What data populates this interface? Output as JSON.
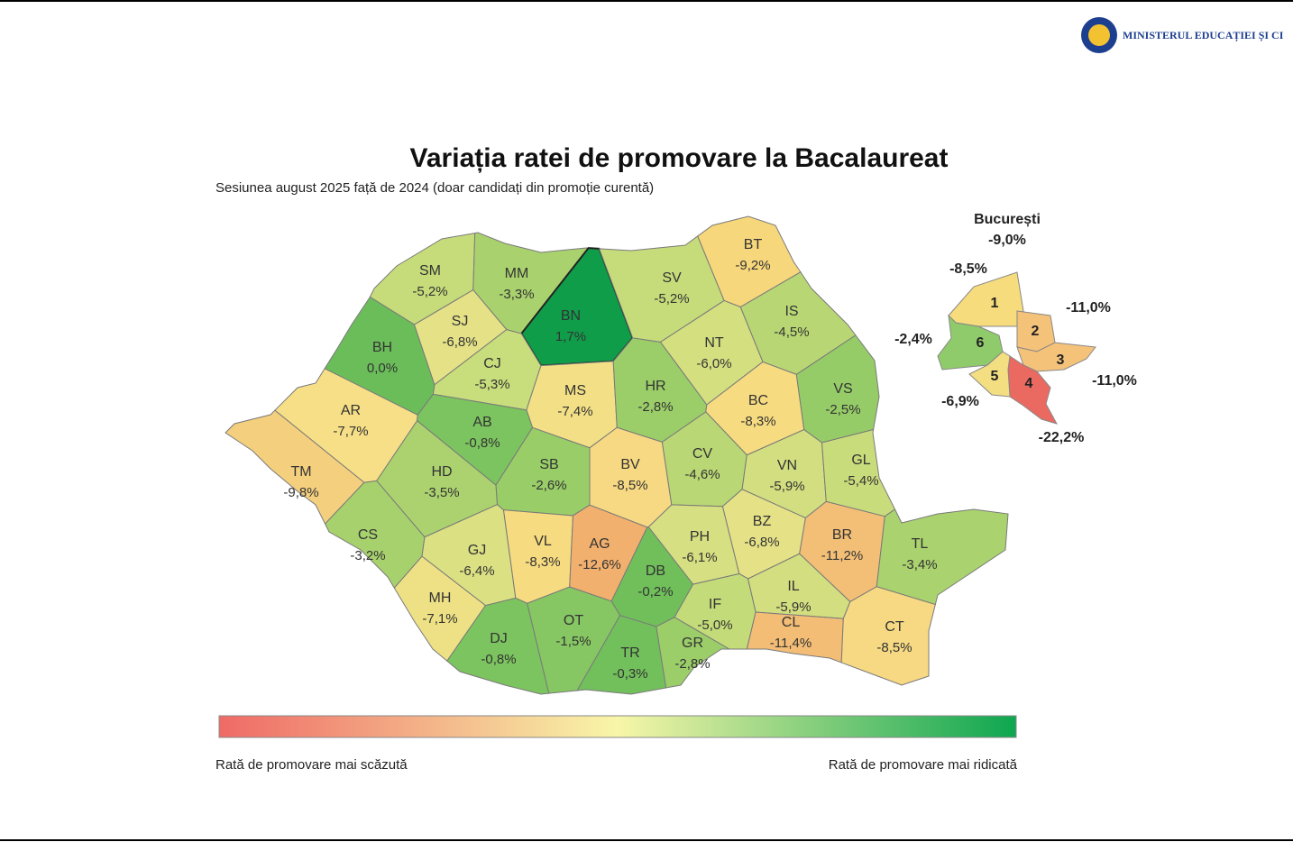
{
  "header": {
    "ministry": "MINISTERUL EDUCAȚIEI ȘI CI"
  },
  "title": "Variația ratei de promovare la Bacalaureat",
  "subtitle": "Sesiunea august 2025 față de 2024 (doar candidați din promoție curentă)",
  "counties": [
    {
      "code": "SM",
      "value": "-5,2%",
      "color": "#c6dc7a"
    },
    {
      "code": "MM",
      "value": "-3,3%",
      "color": "#a9d26e"
    },
    {
      "code": "BN",
      "value": "1,7%",
      "color": "#0f9d4a"
    },
    {
      "code": "SV",
      "value": "-5,2%",
      "color": "#c6dc7a"
    },
    {
      "code": "BT",
      "value": "-9,2%",
      "color": "#f7d77c"
    },
    {
      "code": "IS",
      "value": "-4,5%",
      "color": "#b8d774"
    },
    {
      "code": "BH",
      "value": "0,0%",
      "color": "#6bbd5a"
    },
    {
      "code": "SJ",
      "value": "-6,8%",
      "color": "#e5e187"
    },
    {
      "code": "CJ",
      "value": "-5,3%",
      "color": "#c8dd7b"
    },
    {
      "code": "MS",
      "value": "-7,4%",
      "color": "#f3e086"
    },
    {
      "code": "HR",
      "value": "-2,8%",
      "color": "#9bce69"
    },
    {
      "code": "NT",
      "value": "-6,0%",
      "color": "#d4df80"
    },
    {
      "code": "BC",
      "value": "-8,3%",
      "color": "#f6db80"
    },
    {
      "code": "VS",
      "value": "-2,5%",
      "color": "#96cc67"
    },
    {
      "code": "AR",
      "value": "-7,7%",
      "color": "#f6df86"
    },
    {
      "code": "AB",
      "value": "-0,8%",
      "color": "#7cc45f"
    },
    {
      "code": "SB",
      "value": "-2,6%",
      "color": "#98cd68"
    },
    {
      "code": "BV",
      "value": "-8,5%",
      "color": "#f6d982"
    },
    {
      "code": "CV",
      "value": "-4,6%",
      "color": "#b9d774"
    },
    {
      "code": "VN",
      "value": "-5,9%",
      "color": "#d2de7f"
    },
    {
      "code": "GL",
      "value": "-5,4%",
      "color": "#c9dc7b"
    },
    {
      "code": "TM",
      "value": "-9,8%",
      "color": "#f4cf7e"
    },
    {
      "code": "HD",
      "value": "-3,5%",
      "color": "#abd26f"
    },
    {
      "code": "CS",
      "value": "-3,2%",
      "color": "#a7d16d"
    },
    {
      "code": "GJ",
      "value": "-6,4%",
      "color": "#dbe083"
    },
    {
      "code": "VL",
      "value": "-8,3%",
      "color": "#f6db80"
    },
    {
      "code": "AG",
      "value": "-12,6%",
      "color": "#f2b06e"
    },
    {
      "code": "DB",
      "value": "-0,2%",
      "color": "#70bf5b"
    },
    {
      "code": "PH",
      "value": "-6,1%",
      "color": "#d6df81"
    },
    {
      "code": "BZ",
      "value": "-6,8%",
      "color": "#e5e187"
    },
    {
      "code": "BR",
      "value": "-11,2%",
      "color": "#f3bf77"
    },
    {
      "code": "TL",
      "value": "-3,4%",
      "color": "#aad26e"
    },
    {
      "code": "MH",
      "value": "-7,1%",
      "color": "#eee185"
    },
    {
      "code": "DJ",
      "value": "-0,8%",
      "color": "#7cc45f"
    },
    {
      "code": "OT",
      "value": "-1,5%",
      "color": "#86c763"
    },
    {
      "code": "TR",
      "value": "-0,3%",
      "color": "#72c05c"
    },
    {
      "code": "GR",
      "value": "-2,8%",
      "color": "#9bce69"
    },
    {
      "code": "IF",
      "value": "-5,0%",
      "color": "#c3db79"
    },
    {
      "code": "IL",
      "value": "-5,9%",
      "color": "#d2de7f"
    },
    {
      "code": "CL",
      "value": "-11,4%",
      "color": "#f3bd76"
    },
    {
      "code": "CT",
      "value": "-8,5%",
      "color": "#f6d982"
    }
  ],
  "bucharest": {
    "name": "București",
    "value": "-9,0%",
    "sectors": [
      {
        "label": "1",
        "value": "-8,5%",
        "color": "#f6dc7c"
      },
      {
        "label": "2",
        "value": "-11,0%",
        "color": "#f5c27a"
      },
      {
        "label": "3",
        "value": "-11,0%",
        "color": "#f5c27a"
      },
      {
        "label": "4",
        "value": "-22,2%",
        "color": "#ea6a62"
      },
      {
        "label": "5",
        "value": "-6,9%",
        "color": "#f3de82"
      },
      {
        "label": "6",
        "value": "-2,4%",
        "color": "#8fcb6a"
      }
    ]
  },
  "legend": {
    "low": "Rată de promovare mai scăzută",
    "high": "Rată de promovare mai ridicată"
  }
}
